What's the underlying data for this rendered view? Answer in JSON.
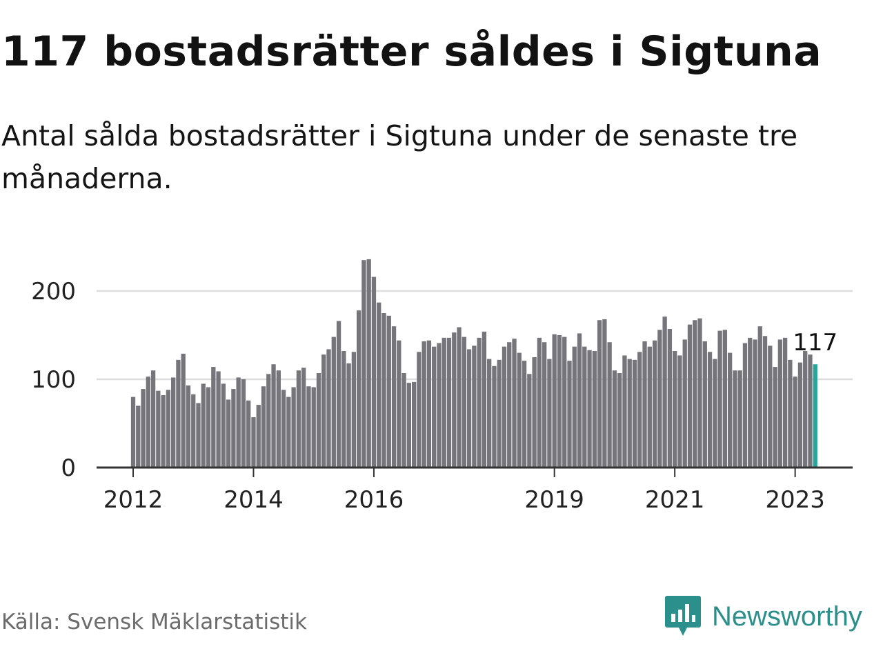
{
  "title": "117 bostadsrätter såldes i Sigtuna",
  "subtitle": "Antal sålda bostadsrätter i Sigtuna under de senaste tre månaderna.",
  "source": "Källa: Svensk Mäklarstatistik",
  "brand": {
    "name": "Newsworthy",
    "icon": "newsworthy-logo-icon",
    "color": "#2b8f8c"
  },
  "colors": {
    "bar": "#76757b",
    "highlight": "#26a69a",
    "grid": "#dddddd",
    "axis": "#333333"
  },
  "chart_data": {
    "type": "bar",
    "title": "117 bostadsrätter såldes i Sigtuna",
    "xlabel": "",
    "ylabel": "",
    "ylim": [
      0,
      250
    ],
    "y_ticks": [
      0,
      100,
      200
    ],
    "x_tick_labels": [
      {
        "label": "2012",
        "index": 0
      },
      {
        "label": "2014",
        "index": 24
      },
      {
        "label": "2016",
        "index": 48
      },
      {
        "label": "2019",
        "index": 84
      },
      {
        "label": "2021",
        "index": 108
      },
      {
        "label": "2023",
        "index": 132
      }
    ],
    "start": "2012-01",
    "highlight_label": "117",
    "values": [
      80,
      70,
      89,
      103,
      110,
      87,
      82,
      88,
      102,
      122,
      129,
      93,
      83,
      73,
      95,
      91,
      114,
      109,
      95,
      77,
      89,
      102,
      100,
      76,
      57,
      71,
      92,
      106,
      117,
      110,
      88,
      80,
      91,
      110,
      113,
      92,
      91,
      107,
      128,
      134,
      148,
      166,
      132,
      118,
      131,
      178,
      235,
      236,
      216,
      187,
      175,
      172,
      160,
      144,
      107,
      96,
      97,
      131,
      143,
      144,
      137,
      141,
      147,
      147,
      153,
      159,
      148,
      134,
      138,
      147,
      154,
      123,
      115,
      122,
      137,
      142,
      146,
      130,
      121,
      106,
      125,
      147,
      142,
      123,
      151,
      150,
      148,
      121,
      137,
      152,
      137,
      133,
      132,
      167,
      168,
      142,
      110,
      107,
      127,
      123,
      122,
      131,
      143,
      137,
      144,
      156,
      171,
      157,
      132,
      127,
      145,
      162,
      167,
      169,
      143,
      131,
      123,
      155,
      156,
      130,
      110,
      110,
      141,
      147,
      145,
      160,
      149,
      138,
      114,
      145,
      147,
      122,
      103,
      119,
      132,
      128,
      117
    ],
    "series": [
      {
        "name": "Sålda bostadsrätter",
        "values": "see values"
      }
    ],
    "legend": "none",
    "grid": true
  }
}
